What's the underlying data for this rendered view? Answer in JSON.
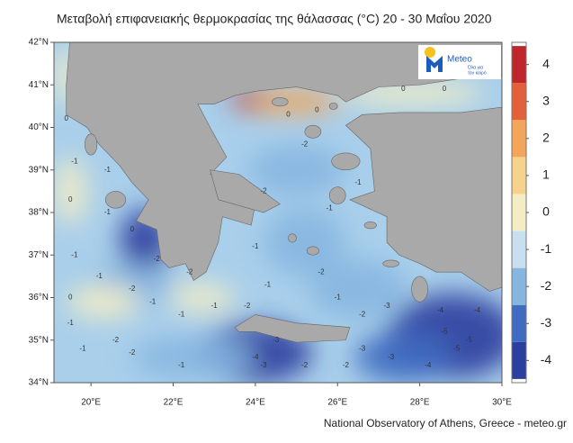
{
  "map": {
    "title": "Μεταβολή επιφανειακής θερμοκρασίας της θάλασσας (°C) 20 - 30 Μαΐου 2020",
    "credit": "National Observatory of Athens, Greece - meteo.gr",
    "logo": {
      "name": "Meteo",
      "tagline": [
        "Όλα για",
        "τον καιρό"
      ]
    },
    "xlim": [
      19.1,
      30
    ],
    "ylim": [
      34,
      42
    ],
    "xticks": [
      {
        "value": 20,
        "label": "20°E"
      },
      {
        "value": 22,
        "label": "22°E"
      },
      {
        "value": 24,
        "label": "24°E"
      },
      {
        "value": 26,
        "label": "26°E"
      },
      {
        "value": 28,
        "label": "28°E"
      },
      {
        "value": 30,
        "label": "30°E"
      }
    ],
    "yticks": [
      {
        "value": 34,
        "label": "34°N"
      },
      {
        "value": 35,
        "label": "35°N"
      },
      {
        "value": 36,
        "label": "36°N"
      },
      {
        "value": 37,
        "label": "37°N"
      },
      {
        "value": 38,
        "label": "38°N"
      },
      {
        "value": 39,
        "label": "39°N"
      },
      {
        "value": 40,
        "label": "40°N"
      },
      {
        "value": 41,
        "label": "41°N"
      },
      {
        "value": 42,
        "label": "42°N"
      }
    ],
    "colorbar": {
      "lim": [
        -4.6,
        4.6
      ],
      "ticks": [
        -4,
        -3,
        -2,
        -1,
        0,
        1,
        2,
        3,
        4
      ],
      "colors": [
        "#2b3f9e",
        "#3f6cc0",
        "#86b6e0",
        "#c7dff1",
        "#f3edc5",
        "#f7d28c",
        "#f3a55a",
        "#e4603a",
        "#bf272d"
      ]
    },
    "map_labels": [
      0,
      -1,
      -1,
      0,
      -1,
      -2,
      -1,
      -1,
      0,
      -2,
      -1,
      -2,
      -1,
      -1,
      -2,
      -1,
      -2,
      0,
      -1,
      -1,
      -2,
      -1,
      -1,
      -3,
      -2,
      -2,
      -2,
      -1,
      -1,
      0,
      0,
      -1,
      -2,
      -3,
      -4,
      -3,
      -2,
      -2,
      -3,
      -4,
      -5,
      -5,
      -4,
      -5,
      -3,
      -4,
      0,
      0
    ]
  }
}
